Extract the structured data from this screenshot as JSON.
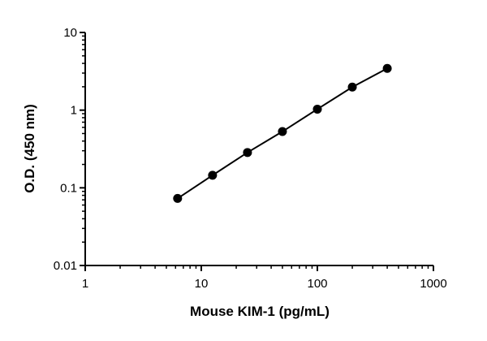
{
  "chart_data": {
    "type": "line",
    "title": "",
    "xlabel": "Mouse KIM-1 (pg/mL)",
    "ylabel": "O.D. (450 nm)",
    "xscale": "log",
    "yscale": "log",
    "xlim": [
      1,
      1000
    ],
    "ylim": [
      0.01,
      10
    ],
    "xticks": [
      "1",
      "10",
      "100",
      "1000"
    ],
    "yticks": [
      "0.01",
      "0.1",
      "1",
      "10"
    ],
    "grid": false,
    "series": [
      {
        "x": [
          6.25,
          12.5,
          25,
          50,
          100,
          200,
          400
        ],
        "y": [
          0.073,
          0.145,
          0.285,
          0.53,
          1.03,
          1.98,
          3.45
        ],
        "color": "#000000",
        "marker": "circle"
      }
    ]
  }
}
